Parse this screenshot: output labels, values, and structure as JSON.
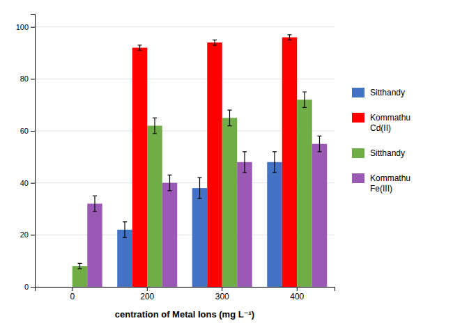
{
  "chart_data": {
    "type": "bar",
    "categories": [
      "0",
      "200",
      "300",
      "400"
    ],
    "series": [
      {
        "name": "Sitthandy",
        "color": "#4472C4",
        "values": [
          0,
          22,
          38,
          48
        ],
        "errors": [
          0,
          3,
          4,
          4
        ]
      },
      {
        "name": "Kommathu\nCd(II)",
        "color": "#FF0000",
        "values": [
          0,
          92,
          94,
          96
        ],
        "errors": [
          0,
          1,
          1,
          1
        ]
      },
      {
        "name": "Sitthandy",
        "color": "#70AD47",
        "values": [
          8,
          62,
          65,
          72
        ],
        "errors": [
          1,
          3,
          3,
          3
        ]
      },
      {
        "name": "Kommathu\nFe(III)",
        "color": "#9B59B6",
        "values": [
          32,
          40,
          48,
          55
        ],
        "errors": [
          3,
          3,
          4,
          3
        ]
      }
    ],
    "xlabel": "centration of Metal Ions (mg L⁻¹)",
    "ylim": [
      0,
      105
    ],
    "yticks": [
      0,
      20,
      40,
      60,
      80,
      100
    ],
    "grid": true,
    "legend": "right"
  }
}
